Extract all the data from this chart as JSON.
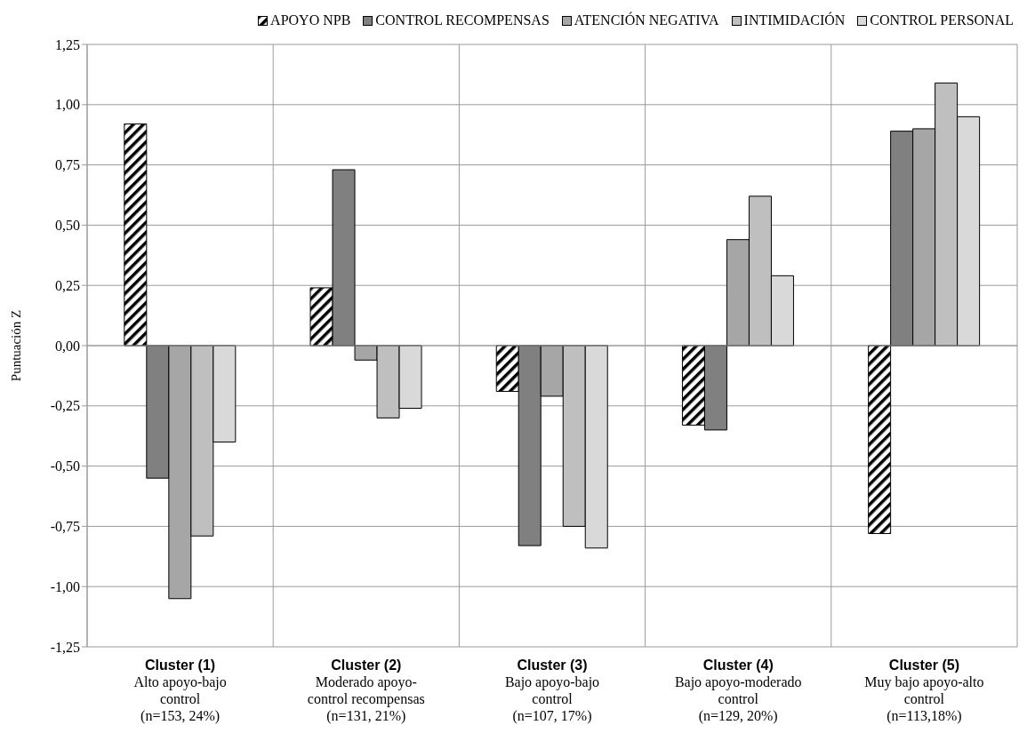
{
  "chart_data": {
    "type": "bar",
    "ylabel": "Puntuación Z",
    "categories": [
      "Cluster (1)\nAlto apoyo-bajo\ncontrol\n(n=153, 24%)",
      "Cluster (2)\nModerado apoyo-\ncontrol recompensas\n(n=131, 21%)",
      "Cluster (3)\nBajo apoyo-bajo\ncontrol\n(n=107, 17%)",
      "Cluster (4)\nBajo apoyo-moderado\ncontrol\n(n=129, 20%)",
      "Cluster (5)\nMuy bajo apoyo-alto\ncontrol\n(n=113,18%)"
    ],
    "series": [
      {
        "name": "APOYO NPB",
        "color": "#000000",
        "values": [
          0.92,
          0.24,
          -0.19,
          -0.33,
          -0.78
        ]
      },
      {
        "name": "CONTROL RECOMPENSAS",
        "color": "#808080",
        "values": [
          -0.55,
          0.73,
          -0.83,
          -0.35,
          0.89
        ]
      },
      {
        "name": "ATENCIÓN NEGATIVA",
        "color": "#a6a6a6",
        "values": [
          -1.05,
          -0.06,
          -0.21,
          0.44,
          0.9
        ]
      },
      {
        "name": "INTIMIDACIÓN",
        "color": "#bfbfbf",
        "values": [
          -0.79,
          -0.3,
          -0.75,
          0.62,
          1.09
        ]
      },
      {
        "name": "CONTROL PERSONAL",
        "color": "#d9d9d9",
        "values": [
          -0.4,
          -0.26,
          -0.84,
          0.29,
          0.95
        ]
      }
    ],
    "ylim": [
      -1.25,
      1.25
    ],
    "yticks": [
      {
        "value": -1.25,
        "label": "-1,25"
      },
      {
        "value": -1,
        "label": "-1,00"
      },
      {
        "value": -0.75,
        "label": "-0,75"
      },
      {
        "value": -0.5,
        "label": "-0,50"
      },
      {
        "value": -0.25,
        "label": "-0,25"
      },
      {
        "value": 0,
        "label": "0,00"
      },
      {
        "value": 0.25,
        "label": "0,25"
      },
      {
        "value": 0.5,
        "label": "0,50"
      },
      {
        "value": 0.75,
        "label": "0,75"
      },
      {
        "value": 1,
        "label": "1,00"
      },
      {
        "value": 1.25,
        "label": "1,25"
      }
    ],
    "grid": true,
    "legend": "top"
  }
}
